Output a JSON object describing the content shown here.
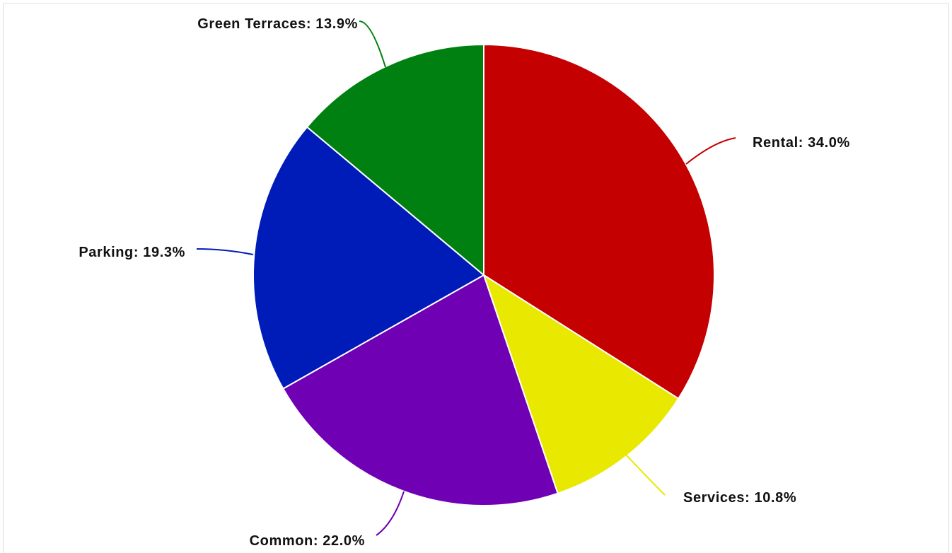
{
  "chart_data": {
    "type": "pie",
    "slices": [
      {
        "name": "Rental",
        "value": 34.0,
        "label": "Rental: 34.0%",
        "color": "#c40000"
      },
      {
        "name": "Services",
        "value": 10.8,
        "label": "Services: 10.8%",
        "color": "#e8e800"
      },
      {
        "name": "Common",
        "value": 22.0,
        "label": "Common: 22.0%",
        "color": "#7000b4"
      },
      {
        "name": "Parking",
        "value": 19.3,
        "label": "Parking: 19.3%",
        "color": "#001cb8"
      },
      {
        "name": "Green Terraces",
        "value": 13.9,
        "label": "Green Terraces: 13.9%",
        "color": "#008010"
      }
    ],
    "start": "12 o'clock",
    "direction": "clockwise",
    "legend": "none"
  }
}
